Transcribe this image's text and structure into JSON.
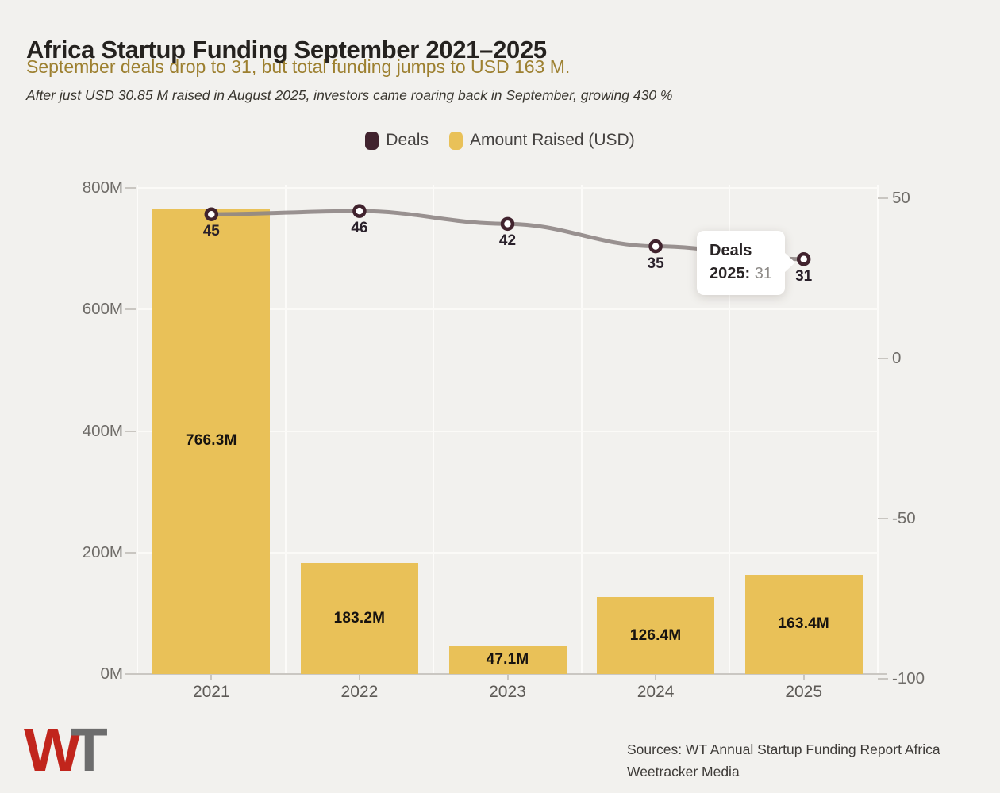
{
  "header": {
    "title": "Africa Startup Funding September 2021–2025",
    "subtitle": "September deals drop to 31, but total funding jumps to USD 163 M.",
    "note": "After just USD 30.85 M raised in August 2025, investors came roaring back in September, growing 430 %"
  },
  "legend": {
    "items": [
      {
        "label": "Deals",
        "color": "#41232e"
      },
      {
        "label": "Amount Raised (USD)",
        "color": "#e9c158"
      }
    ]
  },
  "chart_data": {
    "type": "combo-bar-line",
    "categories": [
      "2021",
      "2022",
      "2023",
      "2024",
      "2025"
    ],
    "series": [
      {
        "name": "Deals",
        "type": "line",
        "axis": "right",
        "marker_color": "#41232e",
        "line_color": "#8f8685",
        "values": [
          45,
          46,
          42,
          35,
          31
        ],
        "labels": [
          "45",
          "46",
          "42",
          "35",
          "31"
        ]
      },
      {
        "name": "Amount Raised (USD)",
        "type": "bar",
        "axis": "left",
        "color": "#e9c158",
        "values": [
          766.3,
          183.2,
          47.1,
          126.4,
          163.4
        ],
        "labels": [
          "766.3M",
          "183.2M",
          "47.1M",
          "126.4M",
          "163.4M"
        ]
      }
    ],
    "left_axis": {
      "unit": "M USD",
      "range": [
        0,
        800
      ],
      "ticks": [
        {
          "label": "800M",
          "value": 800
        },
        {
          "label": "600M",
          "value": 600
        },
        {
          "label": "400M",
          "value": 400
        },
        {
          "label": "200M",
          "value": 200
        },
        {
          "label": "0M",
          "value": 0
        }
      ]
    },
    "right_axis": {
      "unit": "deals",
      "range": [
        -100,
        50
      ],
      "ticks": [
        {
          "label": "50",
          "value": 50
        },
        {
          "label": "0",
          "value": 0
        },
        {
          "label": "-50",
          "value": -50
        },
        {
          "label": "-100",
          "value": -100
        }
      ]
    },
    "grid": true,
    "legend_position": "top"
  },
  "tooltip": {
    "series": "Deals",
    "year_label": "2025:",
    "value": "31"
  },
  "footer": {
    "logo_w": "W",
    "logo_t": "T",
    "sources_line1": "Sources: WT Annual Startup Funding Report Africa",
    "sources_line2": "Weetracker Media"
  }
}
